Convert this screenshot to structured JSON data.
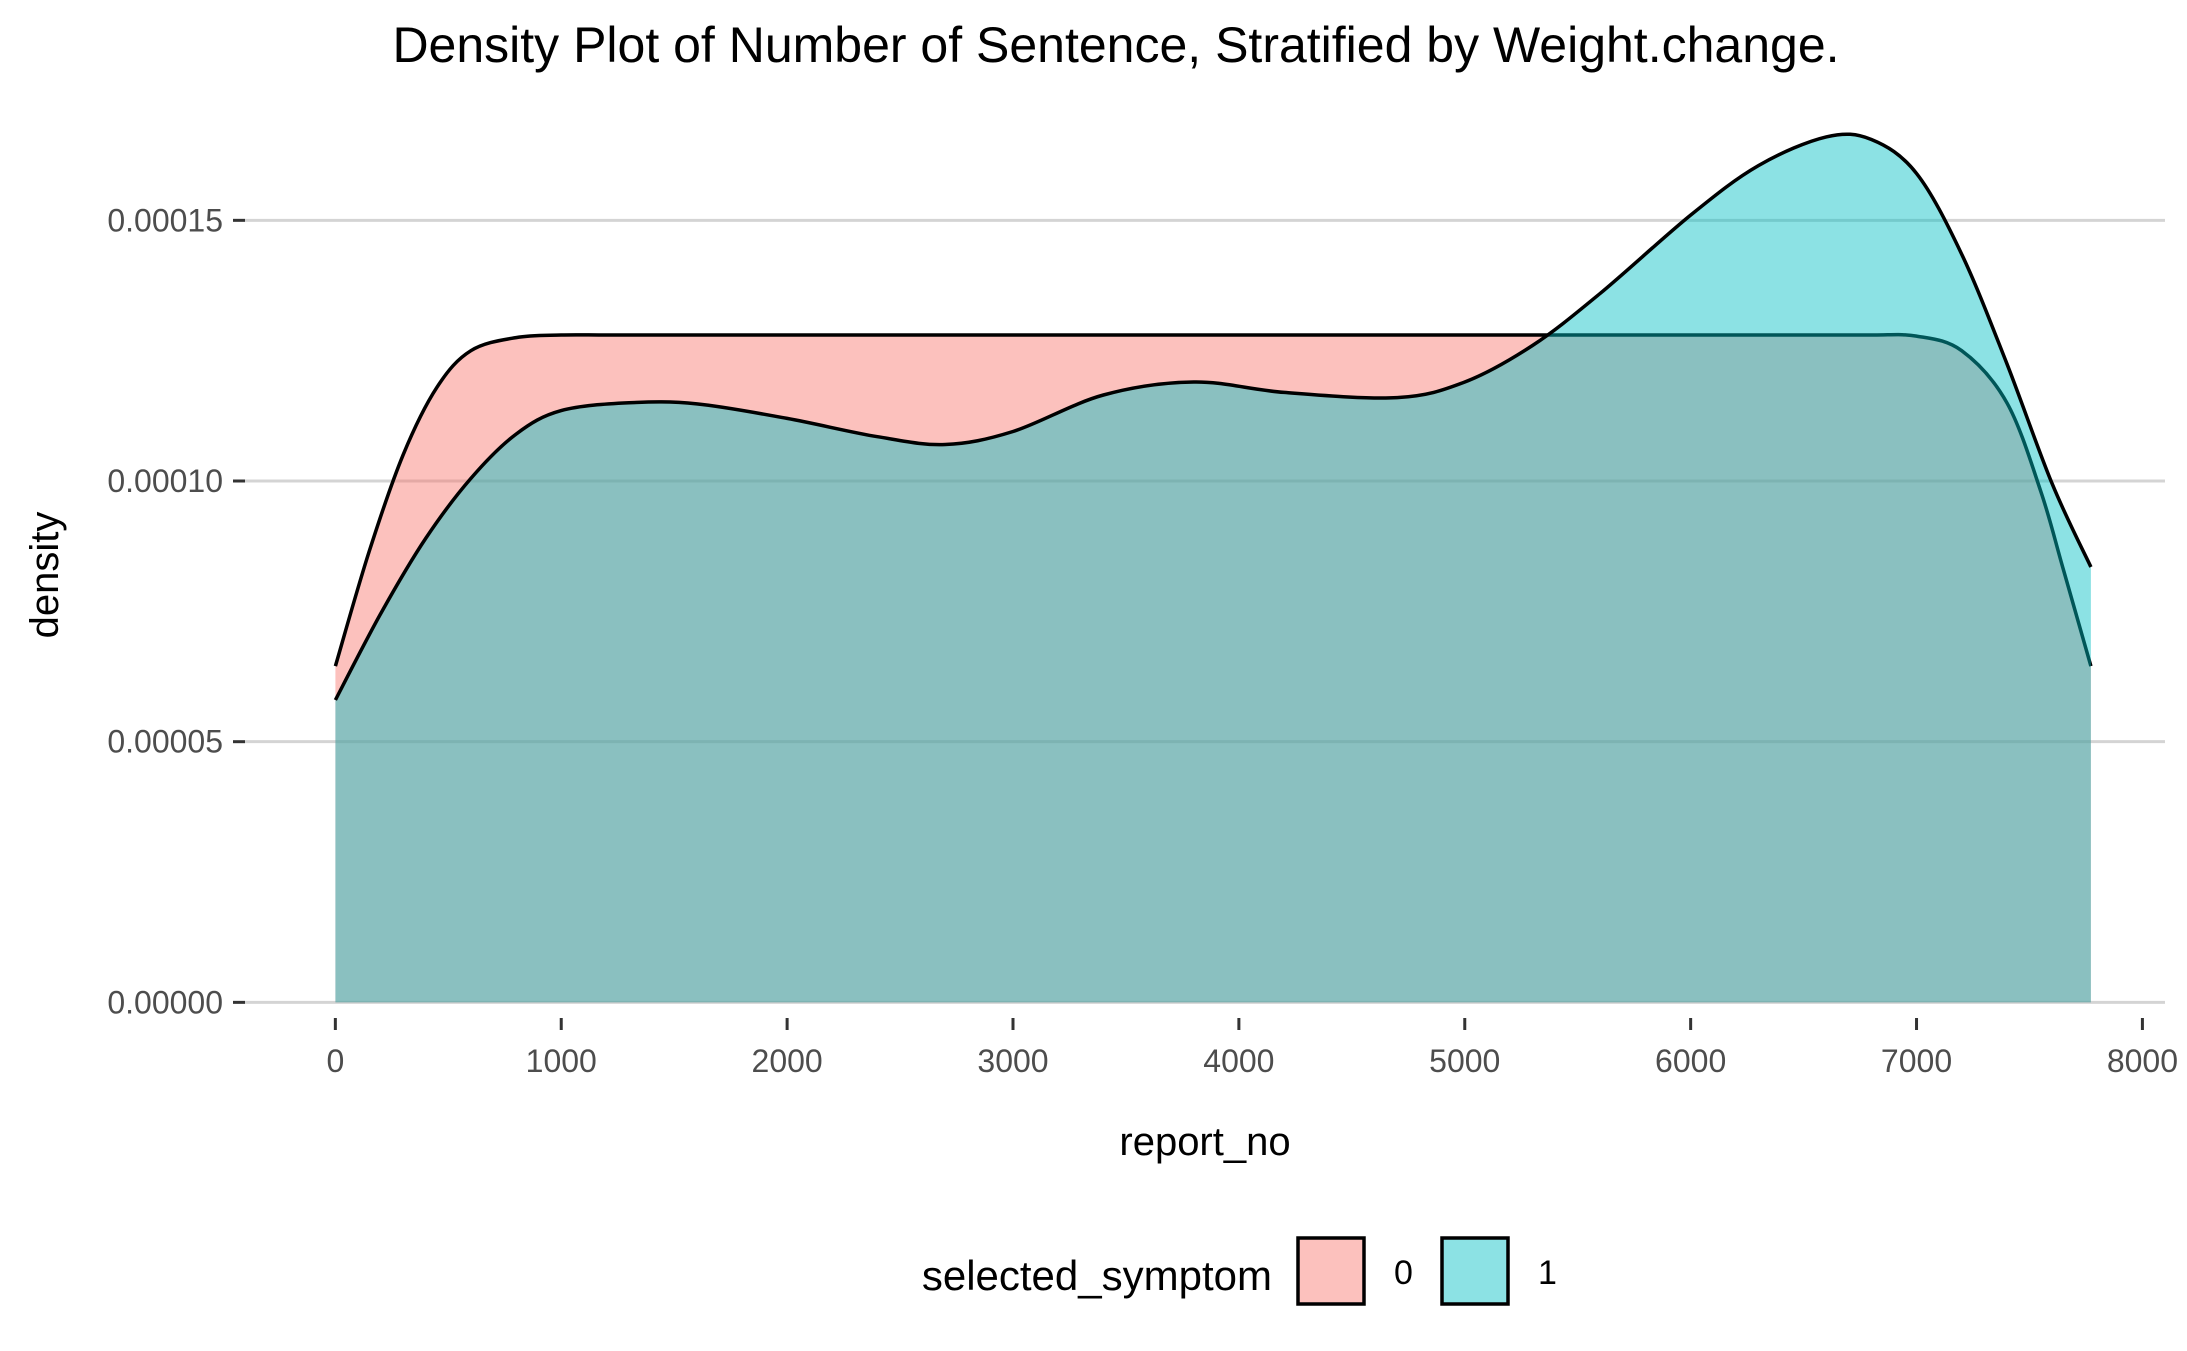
{
  "chart_data": {
    "type": "area",
    "title": "Density Plot of Number of Sentence, Stratified by Weight.change.",
    "xlabel": "report_no",
    "ylabel": "density",
    "xlim": [
      -400,
      8100
    ],
    "ylim": [
      -3e-06,
      0.000175
    ],
    "x_ticks": [
      0,
      1000,
      2000,
      3000,
      4000,
      5000,
      6000,
      7000,
      8000
    ],
    "x_tick_labels": [
      "0",
      "1000",
      "2000",
      "3000",
      "4000",
      "5000",
      "6000",
      "7000",
      "8000"
    ],
    "y_ticks": [
      0,
      5e-05,
      0.0001,
      0.00015
    ],
    "y_tick_labels": [
      "0.00000",
      "0.00005",
      "0.00010",
      "0.00015"
    ],
    "grid": true,
    "legend": {
      "title": "selected_symptom",
      "position": "bottom",
      "entries": [
        "0",
        "1"
      ]
    },
    "series": [
      {
        "name": "0",
        "color": "#F8766D",
        "x": [
          0,
          150,
          300,
          450,
          600,
          800,
          1000,
          1200,
          1500,
          2000,
          3000,
          4000,
          5000,
          6000,
          6500,
          6800,
          7000,
          7200,
          7400,
          7550,
          7650,
          7772
        ],
        "y": [
          6.45e-05,
          8.65e-05,
          0.000105,
          0.000118,
          0.000125,
          0.0001275,
          0.000128,
          0.000128,
          0.000128,
          0.000128,
          0.000128,
          0.000128,
          0.000128,
          0.000128,
          0.000128,
          0.000128,
          0.0001278,
          0.000125,
          0.000115,
          9.8e-05,
          8.3e-05,
          6.45e-05
        ]
      },
      {
        "name": "1",
        "color": "#00BFC4",
        "x": [
          0,
          200,
          400,
          600,
          800,
          1000,
          1300,
          1600,
          2000,
          2400,
          2700,
          3000,
          3400,
          3800,
          4200,
          4700,
          5000,
          5300,
          5600,
          6000,
          6300,
          6600,
          6800,
          7000,
          7200,
          7400,
          7600,
          7772
        ],
        "y": [
          5.8e-05,
          7.45e-05,
          8.9e-05,
          0.0001005,
          0.000109,
          0.0001135,
          0.000115,
          0.0001148,
          0.000112,
          0.0001085,
          0.000107,
          0.0001095,
          0.0001165,
          0.000119,
          0.000117,
          0.000116,
          0.000119,
          0.000126,
          0.000136,
          0.000151,
          0.0001605,
          0.000166,
          0.0001655,
          0.000159,
          0.0001435,
          0.0001225,
          9.95e-05,
          8.35e-05
        ]
      }
    ]
  }
}
